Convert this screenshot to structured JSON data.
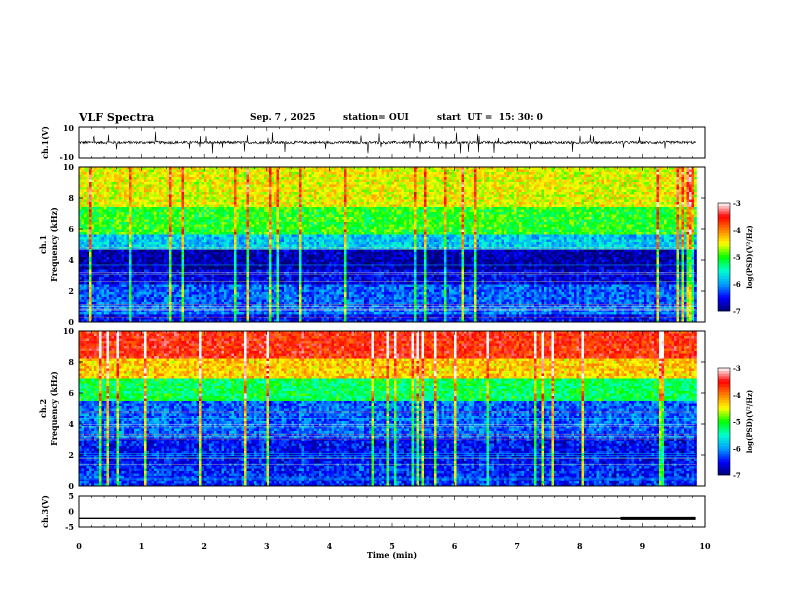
{
  "header": {
    "title": "VLF Spectra",
    "date": "Sep. 7 , 2025",
    "station": "station= OUI",
    "start": "start  UT =  15: 30: 0"
  },
  "chart_data": [
    {
      "type": "line",
      "name": "ch1-waveform",
      "ylabel": "ch.1(V)",
      "xlim": [
        0,
        10
      ],
      "ylim": [
        -10,
        10
      ],
      "yticks": [
        "10",
        "-10"
      ],
      "baseline": 0,
      "typical_amplitude": 1.5,
      "spike_amplitude": 7
    },
    {
      "type": "heatmap",
      "name": "ch1-spectrogram",
      "ylabel": "ch.1\nFrequency (kHz)",
      "xlim": [
        0,
        10
      ],
      "ylim": [
        0,
        10
      ],
      "yticks": [
        "0",
        "2",
        "4",
        "6",
        "8",
        "10"
      ],
      "data_x_end": 9.85,
      "colorbar": {
        "label": "log(PSD)(V²/Hz)",
        "range": [
          -7,
          -3
        ],
        "ticks": [
          "-3",
          "-4",
          "-5",
          "-6",
          "-7"
        ]
      },
      "bands_log_psd": [
        {
          "f_from": 0,
          "f_to": 0.5,
          "value": -6.5
        },
        {
          "f_from": 0.5,
          "f_to": 2.5,
          "value": -6.2
        },
        {
          "f_from": 2.5,
          "f_to": 3.5,
          "value": -6.6
        },
        {
          "f_from": 3.5,
          "f_to": 4.8,
          "value": -6.8
        },
        {
          "f_from": 4.8,
          "f_to": 5.8,
          "value": -5.8
        },
        {
          "f_from": 5.8,
          "f_to": 7.5,
          "value": -5.0
        },
        {
          "f_from": 7.5,
          "f_to": 10,
          "value": -4.5
        }
      ]
    },
    {
      "type": "heatmap",
      "name": "ch2-spectrogram",
      "ylabel": "ch.2\nFrequency (kHz)",
      "xlim": [
        0,
        10
      ],
      "ylim": [
        0,
        10
      ],
      "yticks": [
        "0",
        "2",
        "4",
        "6",
        "8",
        "10"
      ],
      "data_x_end": 9.85,
      "colorbar": {
        "label": "log(PSD)(V²/Hz)",
        "range": [
          -7,
          -3
        ],
        "ticks": [
          "-3",
          "-4",
          "-5",
          "-6",
          "-7"
        ]
      },
      "bands_log_psd": [
        {
          "f_from": 0,
          "f_to": 1.5,
          "value": -6.4
        },
        {
          "f_from": 1.5,
          "f_to": 3.2,
          "value": -6.5
        },
        {
          "f_from": 3.2,
          "f_to": 5.5,
          "value": -6.2
        },
        {
          "f_from": 5.5,
          "f_to": 7,
          "value": -5.2
        },
        {
          "f_from": 7,
          "f_to": 8.3,
          "value": -4.3
        },
        {
          "f_from": 8.3,
          "f_to": 10,
          "value": -3.6
        }
      ]
    },
    {
      "type": "line",
      "name": "ch3-trace",
      "ylabel": "ch.3(V)",
      "xlim": [
        0,
        10
      ],
      "ylim": [
        -5,
        5
      ],
      "yticks": [
        "5",
        "0",
        "-5"
      ],
      "segments": [
        {
          "x_from": 0,
          "x_to": 8.65,
          "y": -2.2,
          "weight": "thin"
        },
        {
          "x_from": 8.65,
          "x_to": 9.85,
          "y": -2.2,
          "weight": "thick"
        }
      ]
    }
  ],
  "xaxis": {
    "label": "Time  (min)",
    "ticks": [
      "0",
      "1",
      "2",
      "3",
      "4",
      "5",
      "6",
      "7",
      "8",
      "9",
      "10"
    ]
  },
  "colormap": [
    "#000070",
    "#0000ff",
    "#00a0ff",
    "#00ffd0",
    "#00ff00",
    "#ffff00",
    "#ff8000",
    "#ff0000",
    "#ffffff"
  ]
}
